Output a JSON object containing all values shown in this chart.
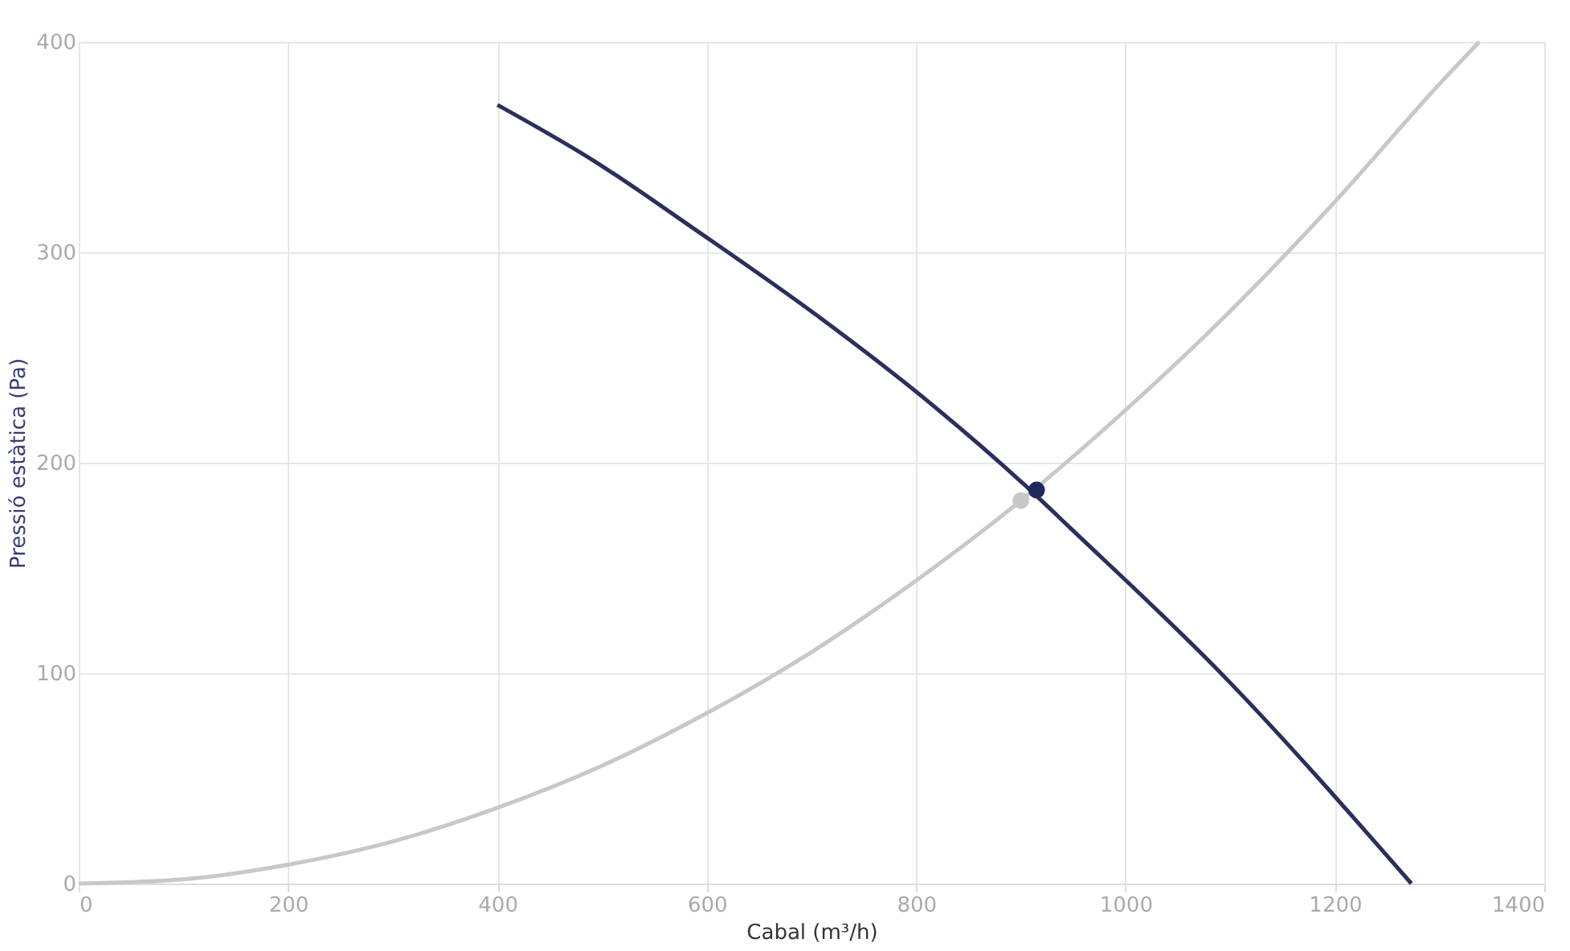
{
  "chart_data": {
    "type": "line",
    "xlabel": "Cabal (m³/h)",
    "ylabel": "Pressió estàtica (Pa)",
    "xlim": [
      0,
      1400
    ],
    "xticks": [
      0,
      200,
      400,
      600,
      800,
      1000,
      1200,
      1400
    ],
    "ylim": [
      0,
      400
    ],
    "yticks": [
      0,
      100,
      200,
      300,
      400
    ],
    "grid": true,
    "marker": "none",
    "series": [
      {
        "color": "#c8c8c8",
        "x": [
          0,
          100,
          200,
          300,
          400,
          500,
          600,
          700,
          800,
          900,
          1000,
          1100,
          1200,
          1300,
          1338
        ],
        "values": [
          0,
          2,
          9,
          20,
          36,
          56,
          81,
          110,
          144,
          182,
          225,
          272,
          324,
          380,
          400
        ]
      },
      {
        "color": "#2b2f5e",
        "x": [
          400,
          487,
          594,
          705,
          814,
          911,
          945,
          1091,
          1273
        ],
        "values": [
          370,
          345,
          309,
          270,
          228,
          186,
          170,
          100,
          0
        ]
      },
      {
        "type": "scatter",
        "marker": "circle",
        "color": "#c8c8c8",
        "x": [
          900
        ],
        "values": [
          182
        ]
      },
      {
        "type": "scatter",
        "marker": "circle",
        "color": "#1f2a5c",
        "x": [
          915
        ],
        "values": [
          187
        ]
      }
    ]
  }
}
